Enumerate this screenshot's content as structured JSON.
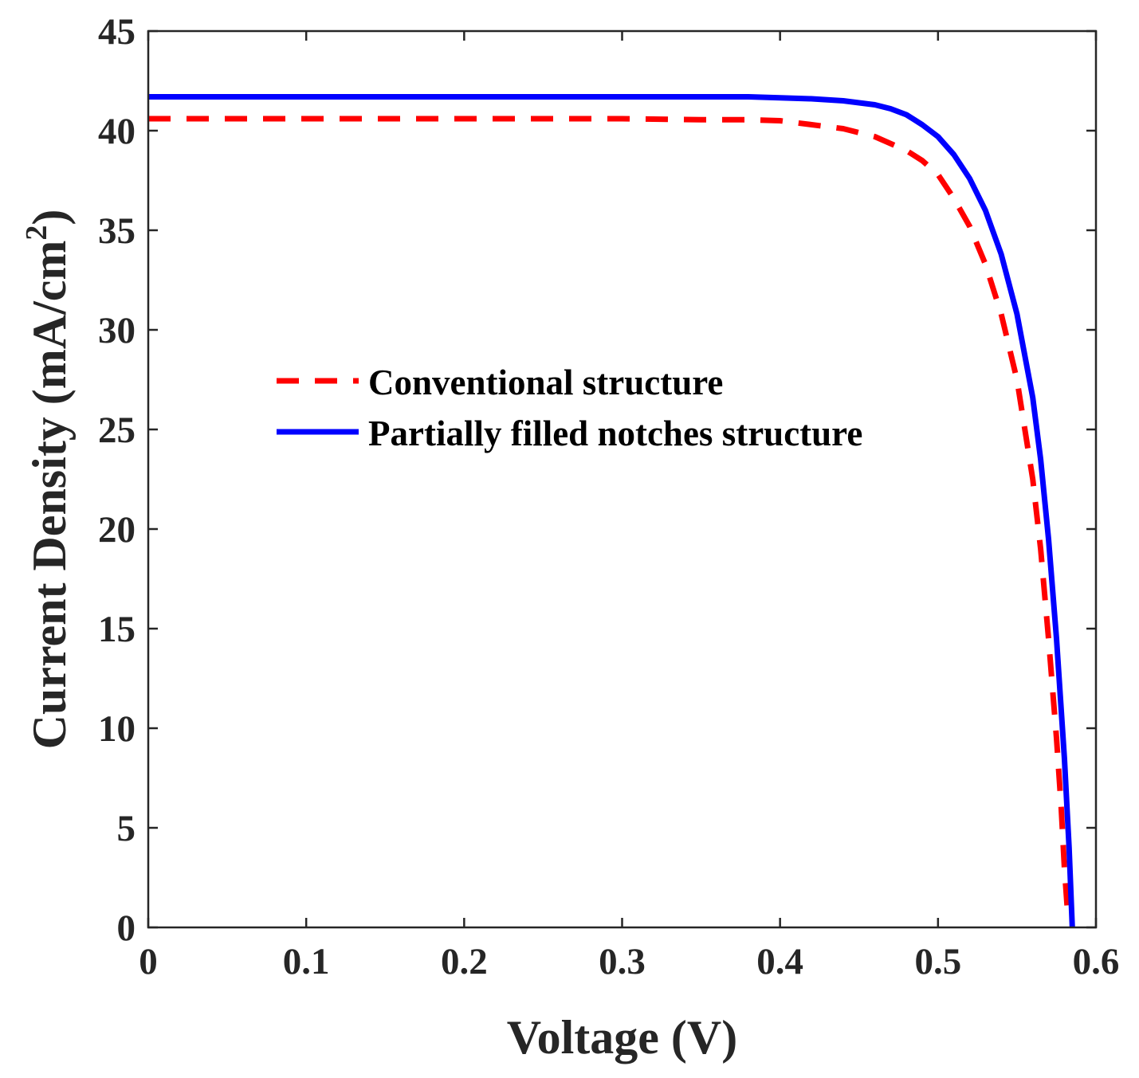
{
  "chart_data": {
    "type": "line",
    "title": "",
    "xlabel": "Voltage (V)",
    "ylabel": "Current Density (mA/cm",
    "ylabel_superscript": "2",
    "ylabel_close": ")",
    "xlim": [
      0,
      0.6
    ],
    "ylim": [
      0,
      45
    ],
    "xticks": [
      0,
      0.1,
      0.2,
      0.3,
      0.4,
      0.5,
      0.6
    ],
    "xtick_labels": [
      "0",
      "0.1",
      "0.2",
      "0.3",
      "0.4",
      "0.5",
      "0.6"
    ],
    "yticks": [
      0,
      5,
      10,
      15,
      20,
      25,
      30,
      35,
      40,
      45
    ],
    "ytick_labels": [
      "0",
      "5",
      "10",
      "15",
      "20",
      "25",
      "30",
      "35",
      "40",
      "45"
    ],
    "grid": false,
    "legend_position": "center",
    "series": [
      {
        "name": "Conventional structure",
        "color": "#ff0000",
        "style": "dashed",
        "x": [
          0,
          0.1,
          0.2,
          0.3,
          0.35,
          0.38,
          0.4,
          0.42,
          0.44,
          0.46,
          0.48,
          0.49,
          0.5,
          0.51,
          0.52,
          0.53,
          0.54,
          0.55,
          0.56,
          0.565,
          0.57,
          0.575,
          0.578,
          0.58,
          0.582
        ],
        "y": [
          40.6,
          40.6,
          40.6,
          40.6,
          40.55,
          40.55,
          40.5,
          40.3,
          40.1,
          39.7,
          39.0,
          38.5,
          37.8,
          36.6,
          35.2,
          33.3,
          30.8,
          27.5,
          22.5,
          19.0,
          14.5,
          9.5,
          6.0,
          3.0,
          0.8
        ]
      },
      {
        "name": "Partially filled notches structure",
        "color": "#0000ff",
        "style": "solid",
        "x": [
          0,
          0.1,
          0.2,
          0.3,
          0.38,
          0.4,
          0.42,
          0.44,
          0.46,
          0.47,
          0.48,
          0.49,
          0.5,
          0.51,
          0.52,
          0.53,
          0.54,
          0.55,
          0.56,
          0.565,
          0.57,
          0.575,
          0.58,
          0.583,
          0.585
        ],
        "y": [
          41.7,
          41.7,
          41.7,
          41.7,
          41.7,
          41.65,
          41.6,
          41.5,
          41.3,
          41.1,
          40.8,
          40.3,
          39.7,
          38.8,
          37.6,
          36.0,
          33.8,
          30.8,
          26.6,
          23.5,
          19.5,
          14.5,
          8.5,
          4.0,
          0.0
        ]
      }
    ]
  }
}
